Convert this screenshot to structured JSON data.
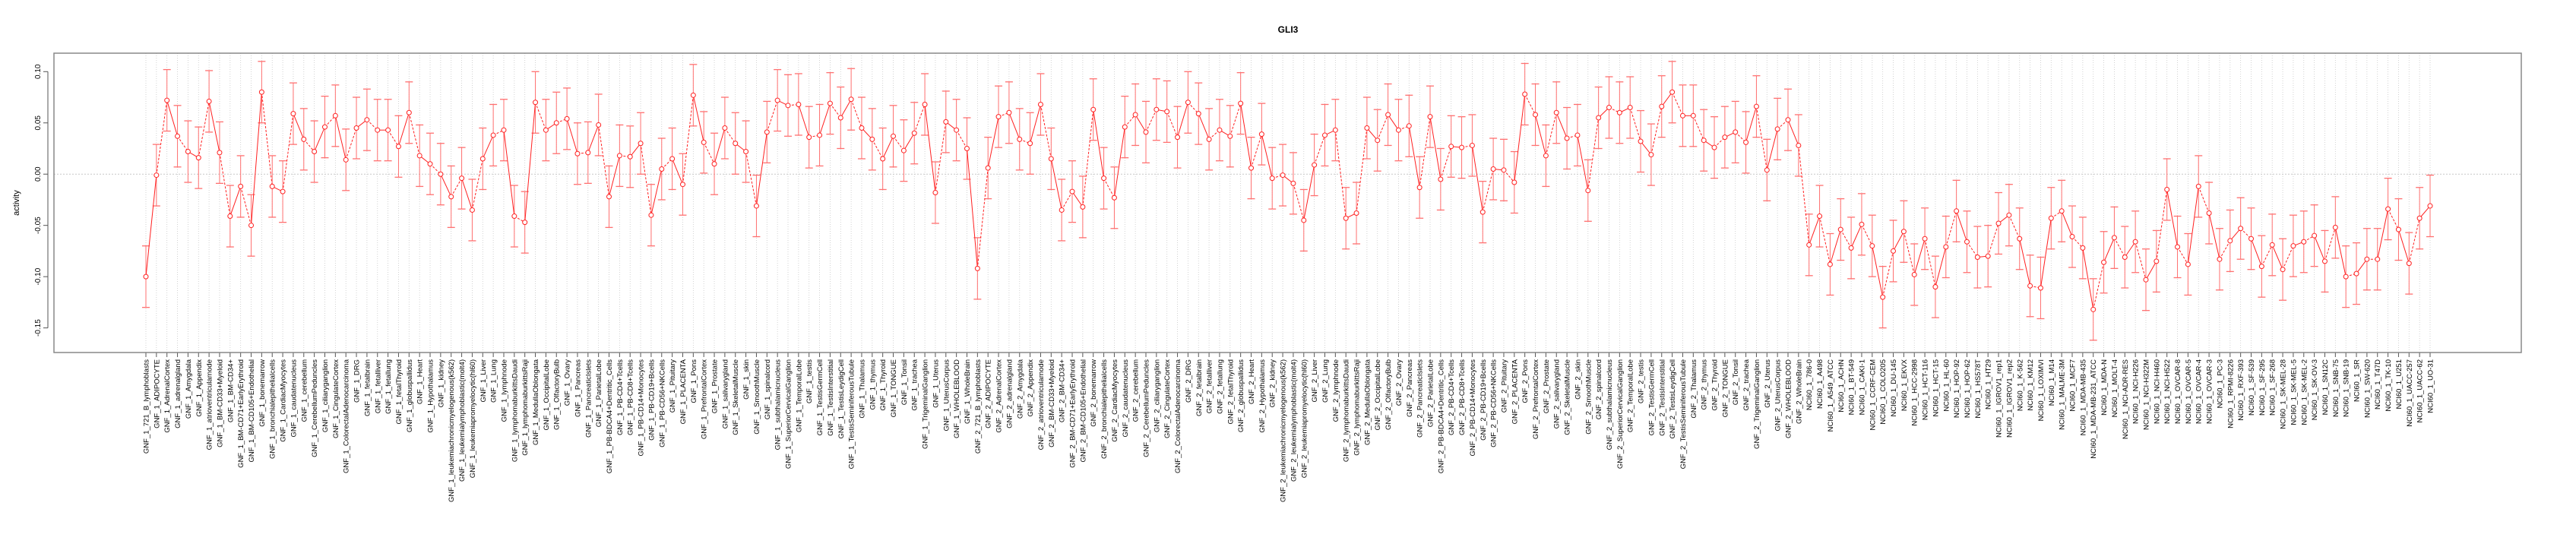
{
  "chart_data": {
    "type": "line",
    "title": "GLI3",
    "xlabel": "",
    "ylabel": "activity",
    "ylim": [
      -0.174,
      0.118
    ],
    "yticks": [
      -0.15,
      -0.1,
      -0.05,
      0.0,
      0.05,
      0.1
    ],
    "ytick_labels": [
      "-0.15",
      "-0.10",
      "-0.05",
      "0.00",
      "0.05",
      "0.10"
    ],
    "grid": true,
    "error_halfwidth": 0.03,
    "colors": {
      "line": "#ff2020",
      "errorbar": "#ff7070",
      "grid": "#c8c8c8",
      "axis": "#555555"
    },
    "categories": [
      "GNF_1_721_B_lymphoblasts",
      "GNF_1_ADIPOCYTE",
      "GNF_1_AdrenalCortex",
      "GNF_1_adrenalgland",
      "GNF_1_Amygdala",
      "GNF_1_Appendix",
      "GNF_1_atrioventricularnode",
      "GNF_1_BM-CD33+Myeloid",
      "GNF_1_BM-CD34+",
      "GNF_1_BM-CD71+EarlyErythroid",
      "GNF_1_BM-CD105+Endothelial",
      "GNF_1_bonemarrow",
      "GNF_1_bronchialepithelialcells",
      "GNF_1_CardiacMyocytes",
      "GNF_1_caudatenucleus",
      "GNF_1_cerebellum",
      "GNF_1_CerebellumPeduncles",
      "GNF_1_ciliaryganglion",
      "GNF_1_CingulateCortex",
      "GNF_1_ColorectalAdenocarcinoma",
      "GNF_1_DRG",
      "GNF_1_fetalbrain",
      "GNF_1_fetalliver",
      "GNF_1_fetallung",
      "GNF_1_fetalThyroid",
      "GNF_1_globuspallidus",
      "GNF_1_Heart",
      "GNF_1_Hypothalamus",
      "GNF_1_kidney",
      "GNF_1_leukemiachronicmyelogenous(k562)",
      "GNF_1_leukemialymphoblastic(molt4)",
      "GNF_1_leukemiapromyelocytic(hl60)",
      "GNF_1_Liver",
      "GNF_1_Lung",
      "GNF_1_lymphnode",
      "GNF_1_lymphomaburkittsDaudi",
      "GNF_1_lymphomaburkittsRaji",
      "GNF_1_MedullaOblongata",
      "GNF_1_OccipitalLobe",
      "GNF_1_OlfactoryBulb",
      "GNF_1_Ovary",
      "GNF_1_Pancreas",
      "GNF_1_PancreaticIslets",
      "GNF_1_ParietalLobe",
      "GNF_1_PB-BDCA4+Dentritic_Cells",
      "GNF_1_PB-CD4+Tcells",
      "GNF_1_PB-CD8+Tcells",
      "GNF_1_PB-CD14+Monocytes",
      "GNF_1_PB-CD19+Bcells",
      "GNF_1_PB-CD56+NKCells",
      "GNF_1_Pituitary",
      "GNF_1_PLACENTA",
      "GNF_1_Pons",
      "GNF_1_PrefrontalCortex",
      "GNF_1_Prostate",
      "GNF_1_salivarygland",
      "GNF_1_SkeletalMuscle",
      "GNF_1_skin",
      "GNF_1_SmoothMuscle",
      "GNF_1_spinalcord",
      "GNF_1_subthalamicnucleus",
      "GNF_1_SuperiorCervicalGanglion",
      "GNF_1_TemporalLobe",
      "GNF_1_testis",
      "GNF_1_TestisGermCell",
      "GNF_1_TestisInterstitial",
      "GNF_1_TestisLeydigCell",
      "GNF_1_TestisSeminiferousTubule",
      "GNF_1_Thalamus",
      "GNF_1_thymus",
      "GNF_1_Thyroid",
      "GNF_1_TONGUE",
      "GNF_1_Tonsil",
      "GNF_1_trachea",
      "GNF_1_TrigeminalGanglion",
      "GNF_1_Uterus",
      "GNF_1_UterusCorpus",
      "GNF_1_WHOLEBLOOD",
      "GNF_1_WholeBrain",
      "GNF_2_721_B_lymphoblasts",
      "GNF_2_ADIPOCYTE",
      "GNF_2_AdrenalCortex",
      "GNF_2_adrenalgland",
      "GNF_2_Amygdala",
      "GNF_2_Appendix",
      "GNF_2_atrioventricularnode",
      "GNF_2_BM-CD33+Myeloid",
      "GNF_2_BM-CD34+",
      "GNF_2_BM-CD71+EarlyErythroid",
      "GNF_2_BM-CD105+Endothelial",
      "GNF_2_bonemarrow",
      "GNF_2_bronchialepithelialcells",
      "GNF_2_CardiacMyocytes",
      "GNF_2_caudatenucleus",
      "GNF_2_cerebellum",
      "GNF_2_CerebellumPeduncles",
      "GNF_2_ciliaryganglion",
      "GNF_2_CingulateCortex",
      "GNF_2_ColorectalAdenocarcinoma",
      "GNF_2_DRG",
      "GNF_2_fetalbrain",
      "GNF_2_fetalliver",
      "GNF_2_fetallung",
      "GNF_2_fetalThyroid",
      "GNF_2_globuspallidus",
      "GNF_2_Heart",
      "GNF_2_Hypothalamus",
      "GNF_2_kidney",
      "GNF_2_leukemiachronicmyelogenous(k562)",
      "GNF_2_leukemialymphoblastic(molt4)",
      "GNF_2_leukemiapromyelocytic(hl60)",
      "GNF_2_Liver",
      "GNF_2_Lung",
      "GNF_2_lymphnode",
      "GNF_2_lymphomaburkittsDaudi",
      "GNF_2_lymphomaburkittsRaji",
      "GNF_2_MedullaOblongata",
      "GNF_2_OccipitalLobe",
      "GNF_2_OlfactoryBulb",
      "GNF_2_Ovary",
      "GNF_2_Pancreas",
      "GNF_2_PancreaticIslets",
      "GNF_2_ParietalLobe",
      "GNF_2_PB-BDCA4+Dentritic_Cells",
      "GNF_2_PB-CD4+Tcells",
      "GNF_2_PB-CD8+Tcells",
      "GNF_2_PB-CD14+Monocytes",
      "GNF_2_PB-CD19+Bcells",
      "GNF_2_PB-CD56+NKCells",
      "GNF_2_Pituitary",
      "GNF_2_PLACENTA",
      "GNF_2_Pons",
      "GNF_2_PrefrontalCortex",
      "GNF_2_Prostate",
      "GNF_2_salivarygland",
      "GNF_2_SkeletalMuscle",
      "GNF_2_skin",
      "GNF_2_SmoothMuscle",
      "GNF_2_spinalcord",
      "GNF_2_subthalamicnucleus",
      "GNF_2_SuperiorCervicalGanglion",
      "GNF_2_TemporalLobe",
      "GNF_2_testis",
      "GNF_2_TestisGermCell",
      "GNF_2_TestisInterstitial",
      "GNF_2_TestisLeydigCell",
      "GNF_2_TestisSeminiferousTubule",
      "GNF_2_Thalamus",
      "GNF_2_thymus",
      "GNF_2_Thyroid",
      "GNF_2_TONGUE",
      "GNF_2_Tonsil",
      "GNF_2_trachea",
      "GNF_2_TrigeminalGanglion",
      "GNF_2_Uterus",
      "GNF_2_UterusCorpus",
      "GNF_2_WHOLEBLOOD",
      "GNF_2_WholeBrain",
      "NCI60_1_786-0",
      "NCI60_1_A498",
      "NCI60_1_A549_ATCC",
      "NCI60_1_ACHN",
      "NCI60_1_BT-549",
      "NCI60_1_CAKI-1",
      "NCI60_1_CCRF-CEM",
      "NCI60_1_COLO205",
      "NCI60_1_DU-145",
      "NCI60_1_EKVX",
      "NCI60_1_HCC-2998",
      "NCI60_1_HCT-116",
      "NCI60_1_HCT-15",
      "NCI60_1_HL-60",
      "NCI60_1_HOP-92",
      "NCI60_1_HOP-62",
      "NCI60_1_HS578T",
      "NCI60_1_HT29",
      "NCI60_1_IGROV1_rep1",
      "NCI60_1_IGROV1_rep2",
      "NCI60_1_K-562",
      "NCI60_1_KM12",
      "NCI60_1_LOXIMVI",
      "NCI60_1_M14",
      "NCI60_1_MALME-3M",
      "NCI60_1_MCF7",
      "NCI60_1_MDA-MB-435",
      "NCI60_1_MDA-MB-231_ATCC",
      "NCI60_1_MDA-N",
      "NCI60_1_MOLT-4",
      "NCI60_1_NCI-ADR-RES",
      "NCI60_1_NCI-H226",
      "NCI60_1_NCI-H322M",
      "NCI60_1_NCI-H460",
      "NCI60_1_NCI-H522",
      "NCI60_1_OVCAR-8",
      "NCI60_1_OVCAR-5",
      "NCI60_1_OVCAR-4",
      "NCI60_1_OVCAR-3",
      "NCI60_1_PC-3",
      "NCI60_1_RPMI-8226",
      "NCI60_1_RXF-393",
      "NCI60_1_SF-539",
      "NCI60_1_SF-295",
      "NCI60_1_SF-268",
      "NCI60_1_SK-MEL-28",
      "NCI60_1_SK-MEL-5",
      "NCI60_1_SK-MEL-2",
      "NCI60_1_SK-OV-3",
      "NCI60_1_SN12C",
      "NCI60_1_SNB-75",
      "NCI60_1_SNB-19",
      "NCI60_1_SR",
      "NCI60_1_SW-620",
      "NCI60_1_T47D",
      "NCI60_1_TK-10",
      "NCI60_1_U251",
      "NCI60_1_UACC-257",
      "NCI60_1_UACC-62",
      "NCI60_1_UO-31"
    ],
    "values": [
      -0.1,
      -0.001,
      0.072,
      0.037,
      0.022,
      0.016,
      0.071,
      0.021,
      -0.041,
      -0.012,
      -0.05,
      0.08,
      -0.012,
      -0.017,
      0.059,
      0.034,
      0.022,
      0.046,
      0.057,
      0.014,
      0.045,
      0.053,
      0.043,
      0.043,
      0.027,
      0.06,
      0.018,
      0.01,
      0.0,
      -0.022,
      -0.004,
      -0.035,
      0.015,
      0.038,
      0.043,
      -0.041,
      -0.047,
      0.07,
      0.043,
      0.05,
      0.054,
      0.02,
      0.021,
      0.048,
      -0.022,
      0.018,
      0.017,
      0.03,
      -0.04,
      0.005,
      0.015,
      -0.01,
      0.077,
      0.031,
      0.01,
      0.045,
      0.03,
      0.022,
      -0.031,
      0.041,
      0.072,
      0.067,
      0.068,
      0.036,
      0.038,
      0.069,
      0.055,
      0.073,
      0.045,
      0.034,
      0.015,
      0.037,
      0.023,
      0.04,
      0.068,
      -0.018,
      0.051,
      0.043,
      0.025,
      -0.092,
      0.006,
      0.056,
      0.06,
      0.034,
      0.03,
      0.068,
      0.015,
      -0.035,
      -0.017,
      -0.032,
      0.063,
      -0.004,
      -0.023,
      0.046,
      0.058,
      0.041,
      0.063,
      0.061,
      0.036,
      0.07,
      0.059,
      0.034,
      0.043,
      0.037,
      0.069,
      0.006,
      0.039,
      -0.004,
      -0.001,
      -0.009,
      -0.045,
      0.009,
      0.038,
      0.043,
      -0.043,
      -0.038,
      0.045,
      0.033,
      0.058,
      0.043,
      0.047,
      -0.013,
      0.056,
      -0.005,
      0.027,
      0.026,
      0.028,
      -0.037,
      0.005,
      0.004,
      -0.008,
      0.078,
      0.058,
      0.018,
      0.06,
      0.035,
      0.038,
      -0.016,
      0.055,
      0.065,
      0.06,
      0.065,
      0.032,
      0.019,
      0.066,
      0.08,
      0.057,
      0.057,
      0.033,
      0.026,
      0.036,
      0.041,
      0.031,
      0.066,
      0.004,
      0.044,
      0.053,
      0.028,
      -0.069,
      -0.041,
      -0.088,
      -0.054,
      -0.072,
      -0.049,
      -0.07,
      -0.12,
      -0.075,
      -0.056,
      -0.098,
      -0.063,
      -0.11,
      -0.071,
      -0.036,
      -0.066,
      -0.081,
      -0.08,
      -0.048,
      -0.04,
      -0.063,
      -0.109,
      -0.111,
      -0.043,
      -0.036,
      -0.061,
      -0.072,
      -0.132,
      -0.086,
      -0.062,
      -0.081,
      -0.066,
      -0.103,
      -0.085,
      -0.015,
      -0.071,
      -0.088,
      -0.012,
      -0.038,
      -0.083,
      -0.065,
      -0.053,
      -0.063,
      -0.09,
      -0.069,
      -0.093,
      -0.07,
      -0.066,
      -0.06,
      -0.085,
      -0.052,
      -0.1,
      -0.097,
      -0.083,
      -0.083,
      -0.034,
      -0.054,
      -0.087,
      -0.043,
      -0.031
    ]
  }
}
